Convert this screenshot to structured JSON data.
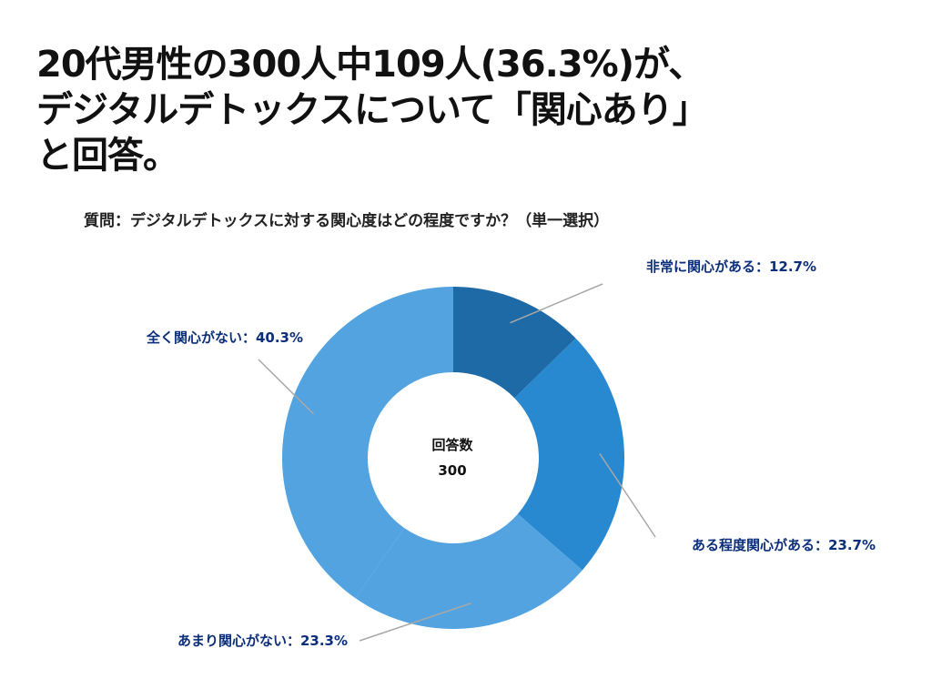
{
  "headline": {
    "line1": "20代男性の300人中109人(36.3%)が、",
    "line2": "デジタルデトックスについて「関心あり」",
    "line3": "と回答。"
  },
  "chart_data": {
    "type": "pie",
    "subtitle": "質問：デジタルデトックスに対する関心度はどの程度ですか？（単一選択）",
    "center_label": "回答数",
    "center_value": "300",
    "slices": [
      {
        "name": "非常に関心がある",
        "value": 12.7,
        "label": "非常に関心がある：12.7%",
        "color": "#1e6aa6"
      },
      {
        "name": "ある程度関心がある",
        "value": 23.7,
        "label": "ある程度関心がある：23.7%",
        "color": "#2888d0"
      },
      {
        "name": "あまり関心がない",
        "value": 23.3,
        "label": "あまり関心がない：23.3%",
        "color": "#52a3e0"
      },
      {
        "name": "全く関心がない",
        "value": 40.3,
        "label": "全く関心がない：40.3%",
        "color": "#52a3e0"
      }
    ]
  }
}
